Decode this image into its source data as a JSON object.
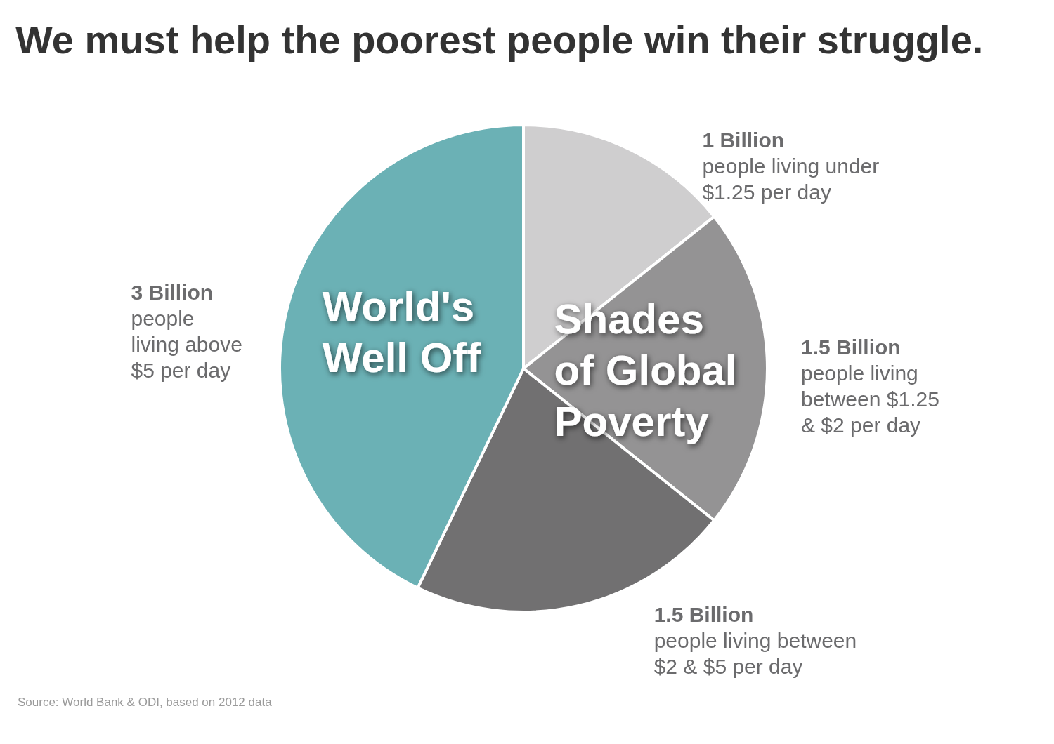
{
  "chart_data": {
    "type": "pie",
    "title": "We must help the poorest people win their struggle.",
    "categories": [
      "people living under $1.25 per day",
      "people living between $1.25 & $2 per day",
      "people living between $2 & $5 per day",
      "people living above $5 per day"
    ],
    "values": [
      1,
      1.5,
      1.5,
      3
    ],
    "value_labels": [
      "1 Billion",
      "1.5 Billion",
      "1.5 Billion",
      "3 Billion"
    ],
    "colors": [
      "#cfcecf",
      "#949394",
      "#717071",
      "#6bb1b5"
    ],
    "annotations": [
      "World's Well Off",
      "Shades of Global Poverty",
      "Source: World Bank & ODI, based on 2012 data"
    ]
  }
}
